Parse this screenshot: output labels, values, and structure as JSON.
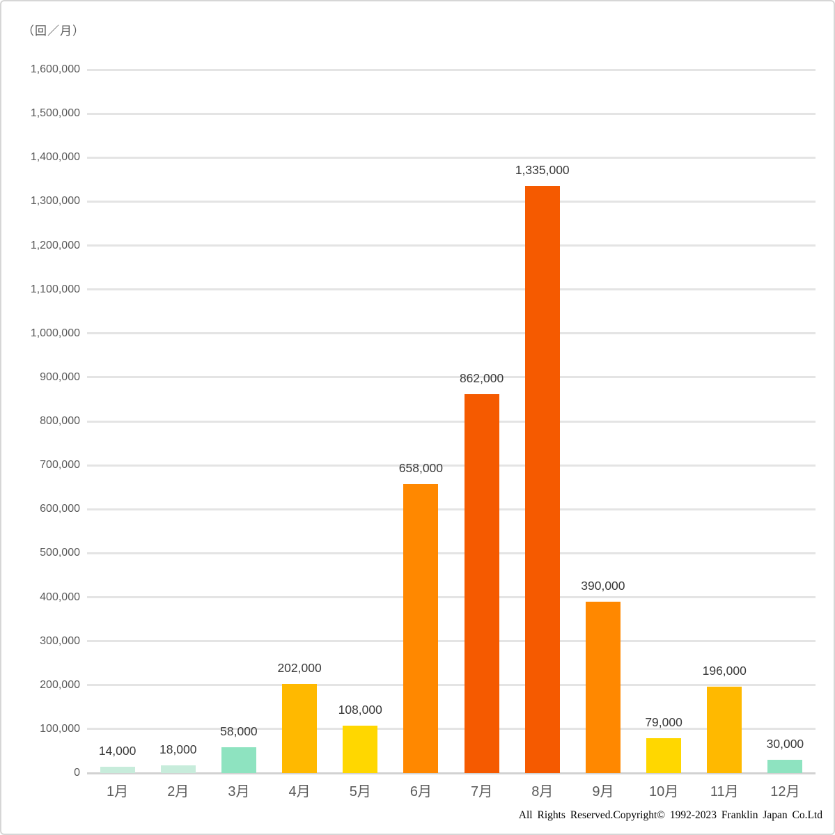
{
  "unit_label": "（回／月）",
  "footer": {
    "copyright": "All Rights Reserved.Copyright©  1992-2023 Franklin  Japan Co.Ltd"
  },
  "chart_data": {
    "type": "bar",
    "title": "",
    "unit_label": "（回／月）",
    "categories": [
      "1月",
      "2月",
      "3月",
      "4月",
      "5月",
      "6月",
      "7月",
      "8月",
      "9月",
      "10月",
      "11月",
      "12月"
    ],
    "values": [
      14000,
      18000,
      58000,
      202000,
      108000,
      658000,
      862000,
      1335000,
      390000,
      79000,
      196000,
      30000
    ],
    "value_labels": [
      "14,000",
      "18,000",
      "58,000",
      "202,000",
      "108,000",
      "658,000",
      "862,000",
      "1,335,000",
      "390,000",
      "79,000",
      "196,000",
      "30,000"
    ],
    "bar_colors": [
      "#c7ecdb",
      "#c7ecdb",
      "#8ee3c0",
      "#ffb900",
      "#ffd700",
      "#ff8800",
      "#f55a00",
      "#f55a00",
      "#ff8800",
      "#ffd700",
      "#ffb900",
      "#8ee3c0"
    ],
    "xlabel": "",
    "ylabel": "回／月",
    "ylim": [
      0,
      1600000
    ],
    "ytick_step": 100000,
    "ytick_labels": [
      "0",
      "100,000",
      "200,000",
      "300,000",
      "400,000",
      "500,000",
      "600,000",
      "700,000",
      "800,000",
      "900,000",
      "1,000,000",
      "1,100,000",
      "1,200,000",
      "1,300,000",
      "1,400,000",
      "1,500,000",
      "1,600,000"
    ],
    "grid": true,
    "legend_position": "none"
  }
}
